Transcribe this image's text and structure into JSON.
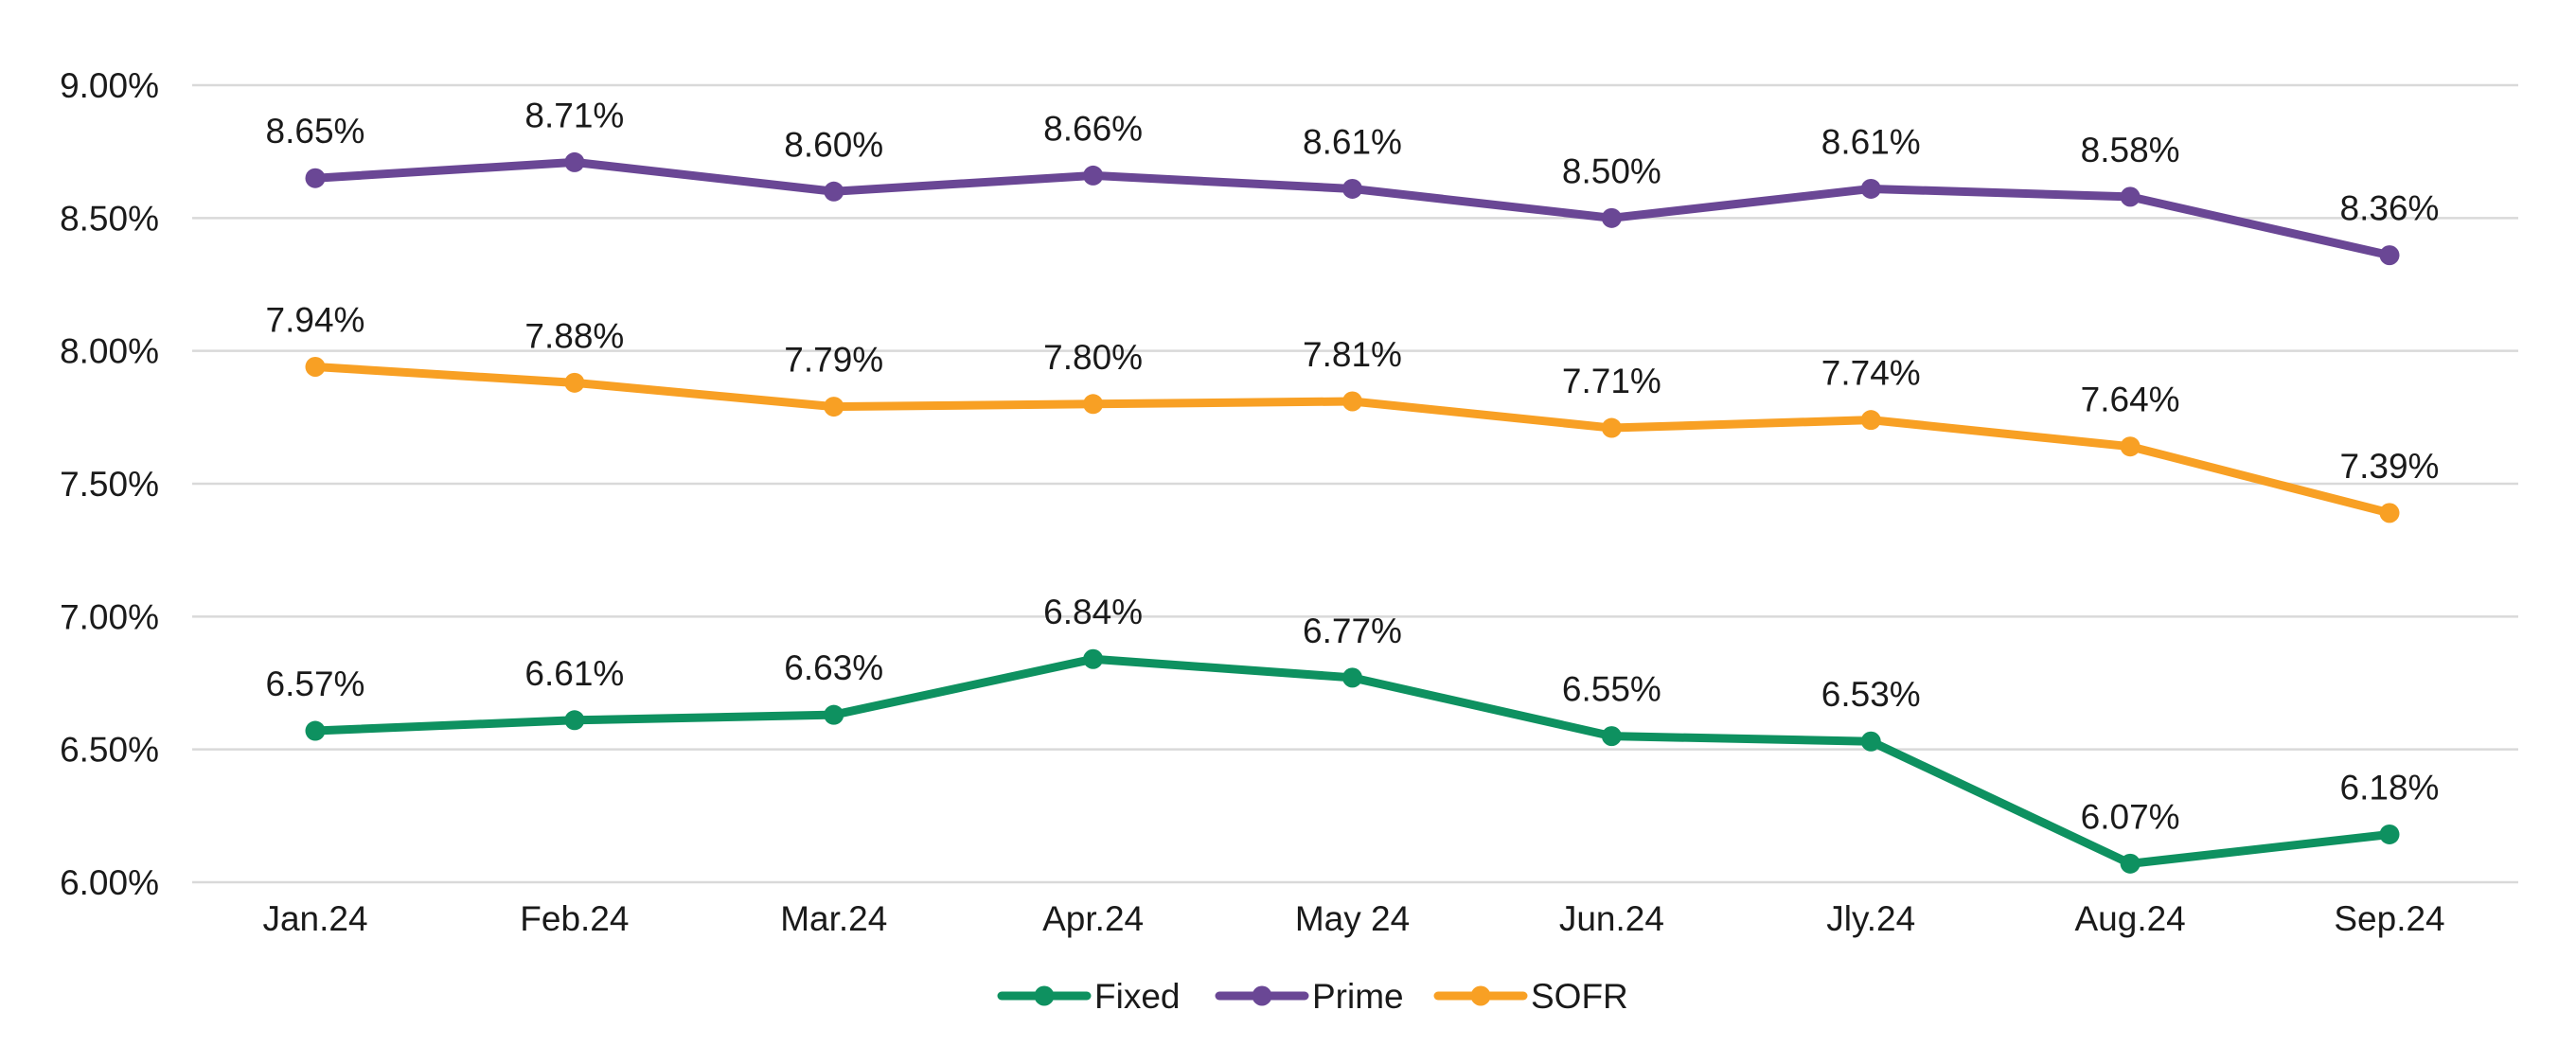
{
  "chart_data": {
    "type": "line",
    "categories": [
      "Jan.24",
      "Feb.24",
      "Mar.24",
      "Apr.24",
      "May 24",
      "Jun.24",
      "Jly.24",
      "Aug.24",
      "Sep.24"
    ],
    "series": [
      {
        "name": "Fixed",
        "color": "#0e9160",
        "values": [
          6.57,
          6.61,
          6.63,
          6.84,
          6.77,
          6.55,
          6.53,
          6.07,
          6.18
        ],
        "labels": [
          "6.57%",
          "6.61%",
          "6.63%",
          "6.84%",
          "6.77%",
          "6.55%",
          "6.53%",
          "6.07%",
          "6.18%"
        ]
      },
      {
        "name": "Prime",
        "color": "#6a4795",
        "values": [
          8.65,
          8.71,
          8.6,
          8.66,
          8.61,
          8.5,
          8.61,
          8.58,
          8.36
        ],
        "labels": [
          "8.65%",
          "8.71%",
          "8.60%",
          "8.66%",
          "8.61%",
          "8.50%",
          "8.61%",
          "8.58%",
          "8.36%"
        ]
      },
      {
        "name": "SOFR",
        "color": "#f8a024",
        "values": [
          7.94,
          7.88,
          7.79,
          7.8,
          7.81,
          7.71,
          7.74,
          7.64,
          7.39
        ],
        "labels": [
          "7.94%",
          "7.88%",
          "7.79%",
          "7.80%",
          "7.81%",
          "7.71%",
          "7.74%",
          "7.64%",
          "7.39%"
        ]
      }
    ],
    "ylim": [
      6.0,
      9.0
    ],
    "yticks": [
      6.0,
      6.5,
      7.0,
      7.5,
      8.0,
      8.5,
      9.0
    ],
    "ytick_labels": [
      "6.00%",
      "6.50%",
      "7.00%",
      "7.50%",
      "8.00%",
      "8.50%",
      "9.00%"
    ],
    "title": "",
    "xlabel": "",
    "ylabel": "",
    "grid": true,
    "legend": "bottom-center",
    "legend_order": [
      "Fixed",
      "Prime",
      "SOFR"
    ]
  }
}
